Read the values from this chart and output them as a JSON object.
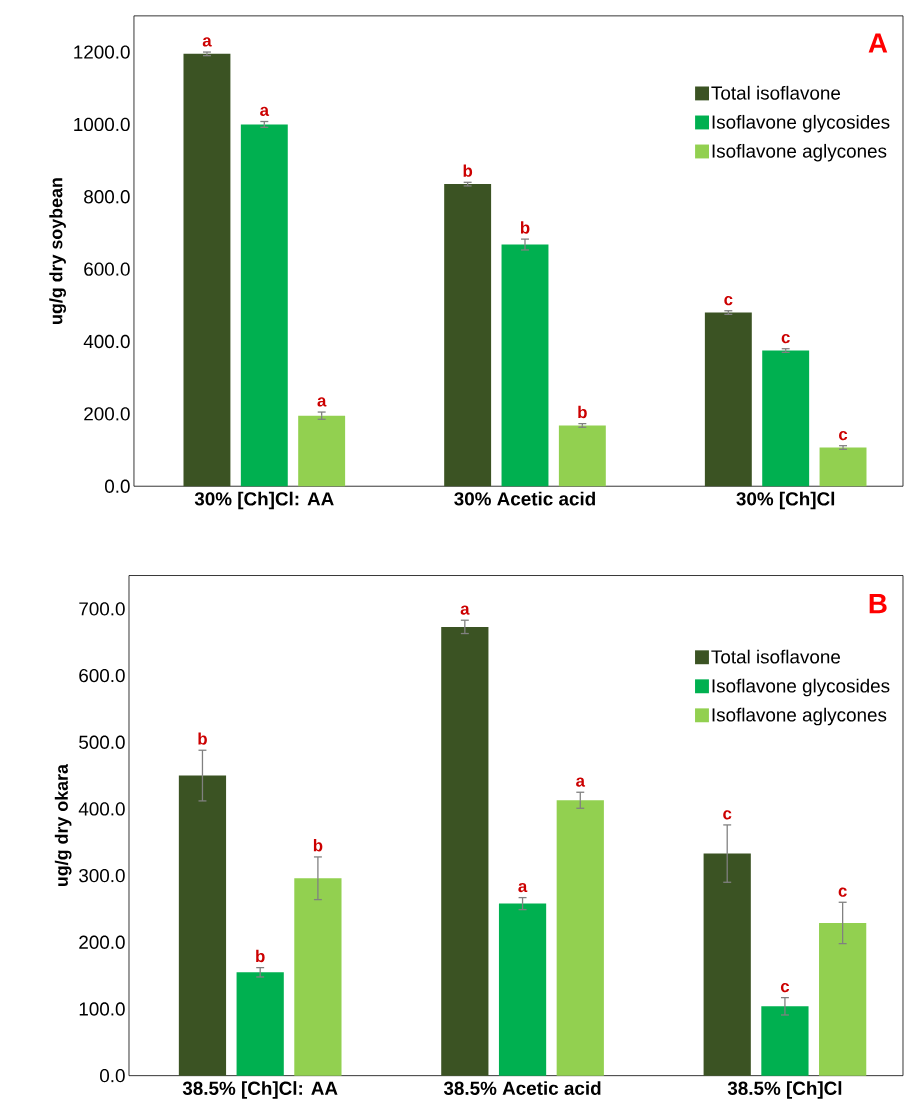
{
  "chart_data": [
    {
      "type": "bar",
      "ylabel": "ug/g dry soybean",
      "categories": [
        "30% [Ch]Cl: AA",
        "30% Acetic acid",
        "30% [Ch]Cl"
      ],
      "ylim": [
        0,
        1300
      ],
      "yticks": [
        {
          "value": 0,
          "label": "0.0"
        },
        {
          "value": 200,
          "label": "200.0"
        },
        {
          "value": 400,
          "label": "400.0"
        },
        {
          "value": 600,
          "label": "600.0"
        },
        {
          "value": 800,
          "label": "800.0"
        },
        {
          "value": 1000,
          "label": "1000.0"
        },
        {
          "value": 1200,
          "label": "1200.0"
        }
      ],
      "legend": "top right",
      "annotations": [
        "A"
      ],
      "series": [
        {
          "name": "Total isoflavone",
          "color": "#3b5323",
          "values": [
            1195,
            835,
            480
          ],
          "errors": [
            5,
            5,
            5
          ],
          "value_labels": [
            "a",
            "b",
            "c"
          ]
        },
        {
          "name": "Isoflavone glycosides",
          "color": "#00b050",
          "values": [
            1000,
            668,
            375
          ],
          "errors": [
            8,
            15,
            5
          ],
          "value_labels": [
            "a",
            "b",
            "c"
          ]
        },
        {
          "name": "Isoflavone aglycones",
          "color": "#92d050",
          "values": [
            195,
            168,
            107
          ],
          "errors": [
            10,
            5,
            5
          ],
          "value_labels": [
            "a",
            "b",
            "c"
          ]
        }
      ]
    },
    {
      "type": "bar",
      "ylabel": "ug/g dry okara",
      "categories": [
        "38.5% [Ch]Cl: AA",
        "38.5% Acetic acid",
        "38.5% [Ch]Cl"
      ],
      "ylim": [
        0,
        750
      ],
      "yticks": [
        {
          "value": 0,
          "label": "0.0"
        },
        {
          "value": 100,
          "label": "100.0"
        },
        {
          "value": 200,
          "label": "200.0"
        },
        {
          "value": 300,
          "label": "300.0"
        },
        {
          "value": 400,
          "label": "400.0"
        },
        {
          "value": 500,
          "label": "500.0"
        },
        {
          "value": 600,
          "label": "600.0"
        },
        {
          "value": 700,
          "label": "700.0"
        }
      ],
      "legend": "top right",
      "annotations": [
        "B"
      ],
      "series": [
        {
          "name": "Total isoflavone",
          "color": "#3b5323",
          "values": [
            450,
            673,
            333
          ],
          "errors": [
            38,
            10,
            43
          ],
          "value_labels": [
            "b",
            "a",
            "c"
          ]
        },
        {
          "name": "Isoflavone glycosides",
          "color": "#00b050",
          "values": [
            155,
            258,
            104
          ],
          "errors": [
            7,
            9,
            13
          ],
          "value_labels": [
            "b",
            "a",
            "c"
          ]
        },
        {
          "name": "Isoflavone aglycones",
          "color": "#92d050",
          "values": [
            296,
            413,
            229
          ],
          "errors": [
            32,
            12,
            31
          ],
          "value_labels": [
            "b",
            "a",
            "c"
          ]
        }
      ]
    }
  ]
}
